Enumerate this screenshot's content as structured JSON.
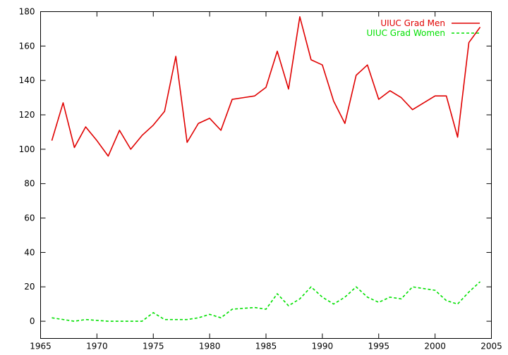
{
  "chart_data": {
    "type": "line",
    "title": "",
    "xlabel": "",
    "ylabel": "",
    "xlim": [
      1965,
      2005
    ],
    "ylim": [
      -10,
      180
    ],
    "xticks": [
      1965,
      1970,
      1975,
      1980,
      1985,
      1990,
      1995,
      2000,
      2005
    ],
    "yticks": [
      0,
      20,
      40,
      60,
      80,
      100,
      120,
      140,
      160,
      180
    ],
    "grid": false,
    "legend_position": "top-right",
    "x": [
      1966,
      1967,
      1968,
      1969,
      1970,
      1971,
      1972,
      1973,
      1974,
      1975,
      1976,
      1977,
      1978,
      1979,
      1980,
      1981,
      1982,
      1983,
      1984,
      1985,
      1986,
      1987,
      1988,
      1989,
      1990,
      1991,
      1992,
      1993,
      1994,
      1995,
      1996,
      1997,
      1998,
      1999,
      2000,
      2001,
      2002,
      2003,
      2004
    ],
    "series": [
      {
        "name": "UIUC Grad Men",
        "color": "#e00000",
        "dash": "solid",
        "values": [
          105,
          127,
          101,
          113,
          105,
          96,
          111,
          100,
          108,
          114,
          122,
          154,
          104,
          115,
          118,
          111,
          129,
          130,
          131,
          136,
          157,
          135,
          177,
          152,
          149,
          128,
          115,
          143,
          149,
          129,
          134,
          130,
          123,
          127,
          131,
          131,
          107,
          162,
          171
        ]
      },
      {
        "name": "UIUC Grad Women",
        "color": "#00e000",
        "dash": "dashed",
        "values": [
          2,
          1,
          0,
          1,
          0.5,
          0,
          0,
          0,
          0,
          5,
          1,
          1,
          1,
          2,
          4,
          2,
          7,
          7.5,
          8,
          7,
          16,
          9,
          13,
          20,
          14,
          10,
          14,
          20,
          14,
          11,
          14,
          13,
          20,
          19,
          18,
          12,
          10,
          17,
          23
        ]
      }
    ]
  }
}
